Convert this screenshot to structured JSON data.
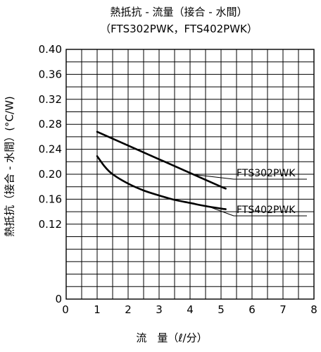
{
  "chart_data": {
    "type": "line",
    "title": "熱抵抗 - 流量（接合 - 水間）",
    "subtitle": "（FTS302PWK，FTS402PWK）",
    "xlabel": "流　量（ℓ/分）",
    "ylabel": "熱抵抗（接合 - 水間）(°C/W)",
    "xlim": [
      0,
      8
    ],
    "ylim": [
      0,
      0.4
    ],
    "x_ticks": [
      "0",
      "1",
      "2",
      "3",
      "4",
      "5",
      "6",
      "7",
      "8"
    ],
    "y_ticks": [
      "0",
      "0.04",
      "0.08",
      "0.12",
      "0.16",
      "0.20",
      "0.24",
      "0.28",
      "0.32",
      "0.36",
      "0.40"
    ],
    "y_tick_labels": [
      "0",
      "",
      "",
      "0.12",
      "0.16",
      "0.20",
      "0.24",
      "0.28",
      "0.32",
      "0.36",
      "0.40"
    ],
    "grid": true,
    "series": [
      {
        "name": "FTS302PWK",
        "x": [
          1.0,
          1.5,
          2.0,
          2.5,
          3.0,
          3.5,
          4.0,
          4.5,
          5.0,
          5.15
        ],
        "y": [
          0.268,
          0.257,
          0.246,
          0.235,
          0.224,
          0.213,
          0.202,
          0.191,
          0.18,
          0.177
        ],
        "label_anchor_x": 4.2,
        "label_anchor_y": 0.199
      },
      {
        "name": "FTS402PWK",
        "x": [
          1.0,
          1.25,
          1.5,
          2.0,
          2.5,
          3.0,
          3.5,
          4.0,
          4.5,
          5.0,
          5.15
        ],
        "y": [
          0.229,
          0.212,
          0.2,
          0.185,
          0.174,
          0.166,
          0.159,
          0.154,
          0.149,
          0.145,
          0.144
        ],
        "label_anchor_x": 4.5,
        "label_anchor_y": 0.15
      }
    ]
  }
}
